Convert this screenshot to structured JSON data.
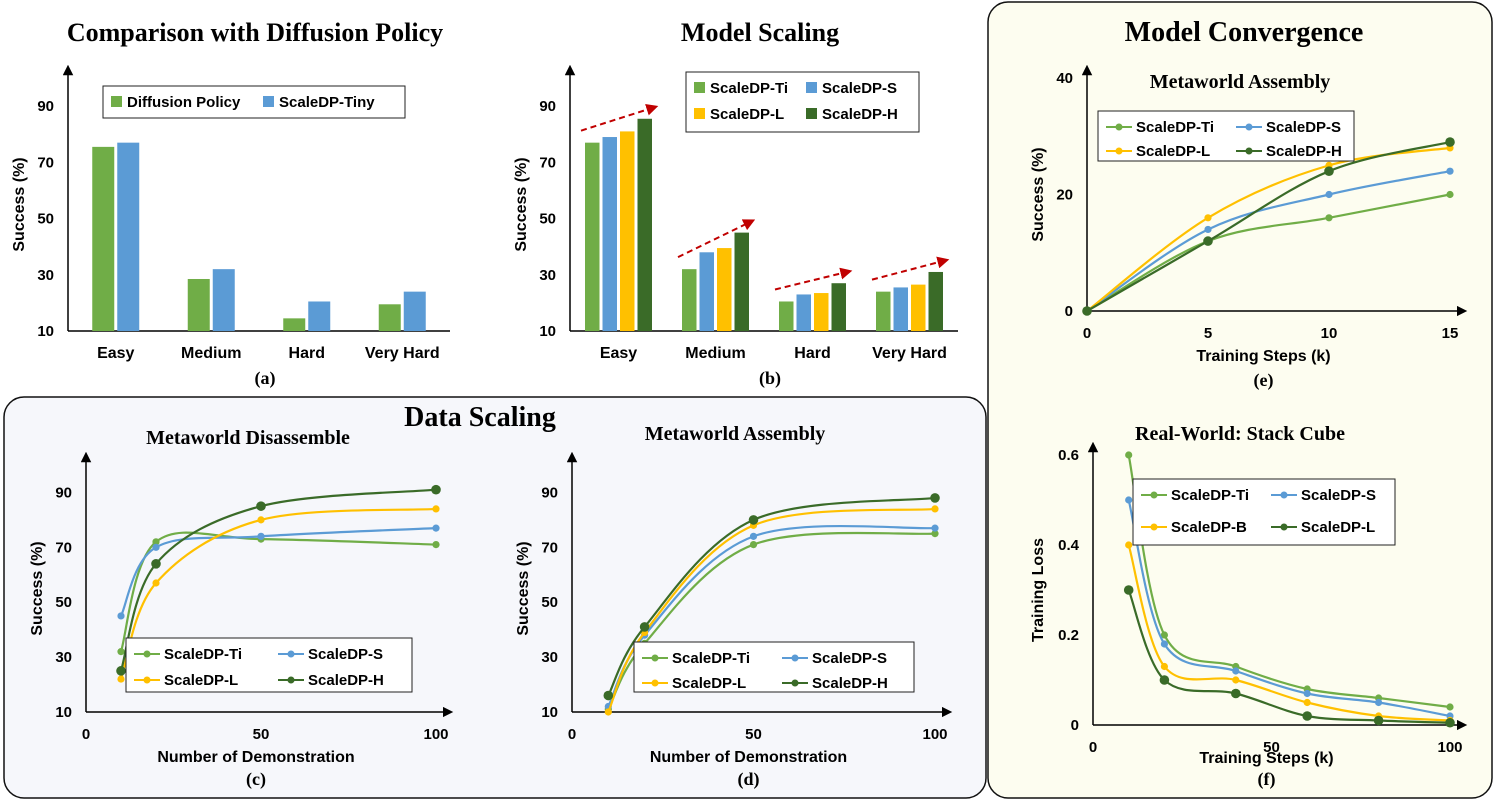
{
  "panels": {
    "data_scaling_title": "Data Scaling",
    "model_convergence_title": "Model Convergence"
  },
  "colors": {
    "green": "#70ad47",
    "blue": "#5b9bd5",
    "gold": "#ffc000",
    "darkgreen": "#3a6b28",
    "arrow": "#c00000",
    "panel_bg": "#f6f7fb",
    "conv_bg": "#fdfdf0"
  },
  "chart_data": [
    {
      "id": "a",
      "type": "bar",
      "title": "Comparison with Diffusion Policy",
      "caption": "(a)",
      "xlabel": "",
      "ylabel": "Success (%)",
      "categories": [
        "Easy",
        "Medium",
        "Hard",
        "Very Hard"
      ],
      "ylim": [
        10,
        100
      ],
      "yticks": [
        10,
        30,
        50,
        70,
        90
      ],
      "series": [
        {
          "name": "Diffusion Policy",
          "color": "#70ad47",
          "values": [
            75.5,
            28.5,
            14.5,
            19.5
          ]
        },
        {
          "name": "ScaleDP-Tiny",
          "color": "#5b9bd5",
          "values": [
            77,
            32,
            20.5,
            24
          ]
        }
      ],
      "legend": "top"
    },
    {
      "id": "b",
      "type": "bar",
      "title": "Model Scaling",
      "caption": "(b)",
      "xlabel": "",
      "ylabel": "Success (%)",
      "categories": [
        "Easy",
        "Medium",
        "Hard",
        "Very Hard"
      ],
      "ylim": [
        10,
        100
      ],
      "yticks": [
        10,
        30,
        50,
        70,
        90
      ],
      "series": [
        {
          "name": "ScaleDP-Ti",
          "color": "#70ad47",
          "values": [
            77,
            32,
            20.5,
            24
          ]
        },
        {
          "name": "ScaleDP-S",
          "color": "#5b9bd5",
          "values": [
            79,
            38,
            23,
            25.5
          ]
        },
        {
          "name": "ScaleDP-L",
          "color": "#ffc000",
          "values": [
            81,
            39.5,
            23.5,
            26.5
          ]
        },
        {
          "name": "ScaleDP-H",
          "color": "#3a6b28",
          "values": [
            85.5,
            45,
            27,
            31
          ]
        }
      ],
      "legend": "top-right",
      "annotations": "dashed red trend arrows over each group"
    },
    {
      "id": "c",
      "type": "line",
      "title": "Metaworld Disassemble",
      "caption": "(c)",
      "xlabel": "Number of Demonstration",
      "ylabel": "Success (%)",
      "xlim": [
        0,
        100
      ],
      "ylim": [
        10,
        100
      ],
      "xticks": [
        0,
        50,
        100
      ],
      "yticks": [
        10,
        30,
        50,
        70,
        90
      ],
      "x": [
        10,
        20,
        50,
        100
      ],
      "series": [
        {
          "name": "ScaleDP-Ti",
          "color": "#70ad47",
          "values": [
            32,
            72,
            73,
            71
          ]
        },
        {
          "name": "ScaleDP-S",
          "color": "#5b9bd5",
          "values": [
            45,
            70,
            74,
            77
          ]
        },
        {
          "name": "ScaleDP-L",
          "color": "#ffc000",
          "values": [
            22,
            57,
            80,
            84
          ]
        },
        {
          "name": "ScaleDP-H",
          "color": "#3a6b28",
          "values": [
            25,
            64,
            85,
            91
          ]
        }
      ],
      "legend": "bottom"
    },
    {
      "id": "d",
      "type": "line",
      "title": "Metaworld Assembly",
      "caption": "(d)",
      "xlabel": "Number of Demonstration",
      "ylabel": "Success (%)",
      "xlim": [
        0,
        100
      ],
      "ylim": [
        10,
        100
      ],
      "xticks": [
        0,
        50,
        100
      ],
      "yticks": [
        10,
        30,
        50,
        70,
        90
      ],
      "x": [
        10,
        20,
        50,
        100
      ],
      "series": [
        {
          "name": "ScaleDP-Ti",
          "color": "#70ad47",
          "values": [
            11,
            35,
            71,
            75
          ]
        },
        {
          "name": "ScaleDP-S",
          "color": "#5b9bd5",
          "values": [
            12,
            38,
            74,
            77
          ]
        },
        {
          "name": "ScaleDP-L",
          "color": "#ffc000",
          "values": [
            10,
            39,
            78,
            84
          ]
        },
        {
          "name": "ScaleDP-H",
          "color": "#3a6b28",
          "values": [
            16,
            41,
            80,
            88
          ]
        }
      ],
      "legend": "bottom"
    },
    {
      "id": "e",
      "type": "line",
      "title": "Metaworld Assembly",
      "caption": "(e)",
      "xlabel": "Training Steps (k)",
      "ylabel": "Success (%)",
      "xlim": [
        0,
        15
      ],
      "ylim": [
        0,
        40
      ],
      "xticks": [
        0,
        5,
        10,
        15
      ],
      "yticks": [
        0,
        20,
        40
      ],
      "x": [
        0,
        5,
        10,
        15
      ],
      "series": [
        {
          "name": "ScaleDP-Ti",
          "color": "#70ad47",
          "values": [
            0,
            12,
            16,
            20
          ]
        },
        {
          "name": "ScaleDP-S",
          "color": "#5b9bd5",
          "values": [
            0,
            14,
            20,
            24
          ]
        },
        {
          "name": "ScaleDP-L",
          "color": "#ffc000",
          "values": [
            0,
            16,
            25,
            28
          ]
        },
        {
          "name": "ScaleDP-H",
          "color": "#3a6b28",
          "values": [
            0,
            12,
            24,
            29
          ]
        }
      ],
      "legend": "top-left"
    },
    {
      "id": "f",
      "type": "line",
      "title": "Real-World: Stack Cube",
      "caption": "(f)",
      "xlabel": "Training Steps (k)",
      "ylabel": "Training Loss",
      "xlim": [
        0,
        100
      ],
      "ylim": [
        0,
        0.6
      ],
      "xticks": [
        0,
        50,
        100
      ],
      "yticks": [
        0,
        0.2,
        0.4,
        0.6
      ],
      "x": [
        10,
        20,
        40,
        60,
        80,
        100
      ],
      "series": [
        {
          "name": "ScaleDP-Ti",
          "color": "#70ad47",
          "values": [
            0.6,
            0.2,
            0.13,
            0.08,
            0.06,
            0.04
          ]
        },
        {
          "name": "ScaleDP-S",
          "color": "#5b9bd5",
          "values": [
            0.5,
            0.18,
            0.12,
            0.07,
            0.05,
            0.02
          ]
        },
        {
          "name": "ScaleDP-B",
          "color": "#ffc000",
          "values": [
            0.4,
            0.13,
            0.1,
            0.05,
            0.02,
            0.01
          ]
        },
        {
          "name": "ScaleDP-L",
          "color": "#3a6b28",
          "values": [
            0.3,
            0.1,
            0.07,
            0.02,
            0.01,
            0.005
          ]
        }
      ],
      "legend": "top"
    }
  ]
}
